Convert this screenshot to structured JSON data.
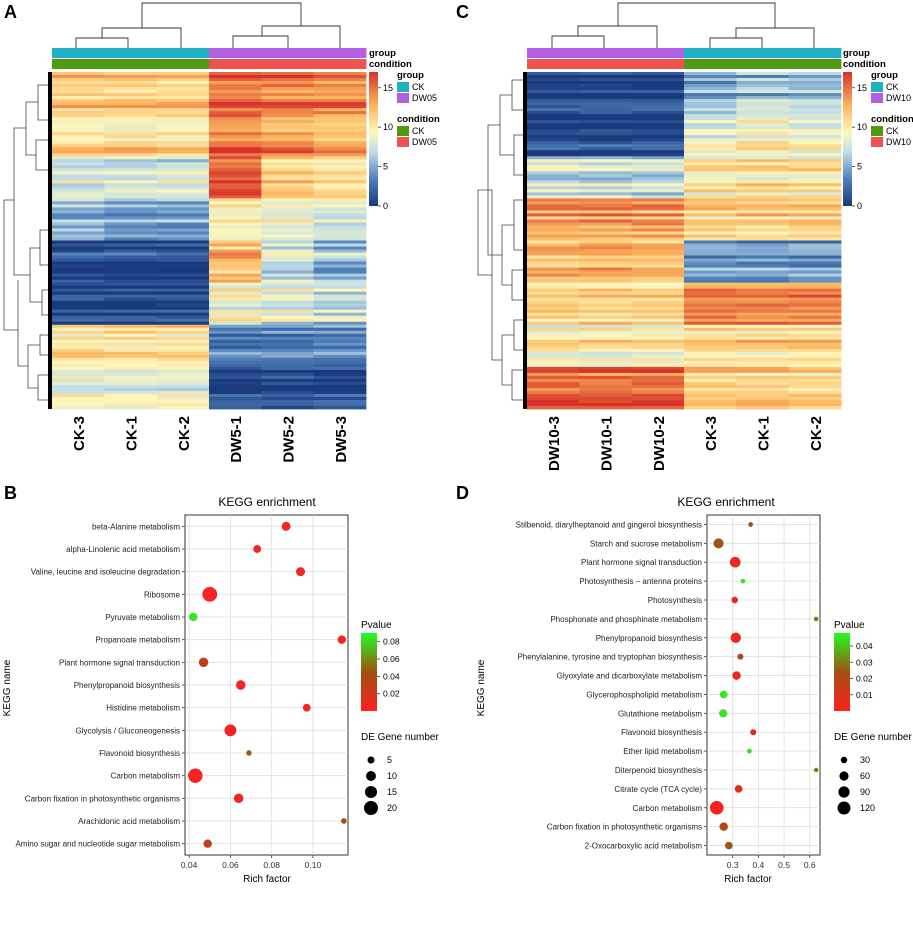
{
  "panels": {
    "A": {
      "letter": "A"
    },
    "B": {
      "letter": "B"
    },
    "C": {
      "letter": "C"
    },
    "D": {
      "letter": "D"
    }
  },
  "legend_labels": {
    "group": "group",
    "condition": "condition",
    "pvalue": "Pvalue",
    "de_gene_number": "DE Gene number"
  },
  "chart_data": [
    {
      "panel": "A",
      "type": "heatmap",
      "columns": [
        "CK-3",
        "CK-1",
        "CK-2",
        "DW5-1",
        "DW5-2",
        "DW5-3"
      ],
      "annotation_rows": [
        "group",
        "condition"
      ],
      "group_legend": [
        {
          "label": "CK",
          "color": "#20b2c4"
        },
        {
          "label": "DW05",
          "color": "#b45ee6"
        }
      ],
      "condition_legend": [
        {
          "label": "CK",
          "color": "#4e9a12"
        },
        {
          "label": "DW05",
          "color": "#f0524f"
        }
      ],
      "column_groups": [
        "CK",
        "CK",
        "CK",
        "DW05",
        "DW05",
        "DW05"
      ],
      "colorbar": {
        "min": 0,
        "max": 17,
        "ticks": [
          0,
          5,
          10,
          15
        ]
      },
      "row_blocks": [
        {
          "values": [
            12,
            12,
            12,
            15.5,
            15,
            15
          ]
        },
        {
          "values": [
            11,
            11,
            11,
            15,
            14,
            13
          ]
        },
        {
          "values": [
            8,
            8,
            8,
            16,
            12,
            11
          ]
        },
        {
          "values": [
            6,
            5,
            5,
            10,
            9,
            8
          ]
        },
        {
          "values": [
            1,
            1,
            1,
            13,
            8,
            6
          ]
        },
        {
          "values": [
            0.3,
            0.3,
            0.3,
            9,
            8,
            7
          ]
        },
        {
          "values": [
            11,
            11,
            11,
            4,
            4,
            4
          ]
        },
        {
          "values": [
            8,
            8,
            8,
            0.5,
            0.5,
            0.5
          ]
        }
      ]
    },
    {
      "panel": "C",
      "type": "heatmap",
      "columns": [
        "DW10-3",
        "DW10-1",
        "DW10-2",
        "CK-3",
        "CK-1",
        "CK-2"
      ],
      "annotation_rows": [
        "group",
        "condition"
      ],
      "group_legend": [
        {
          "label": "CK",
          "color": "#20b2c4"
        },
        {
          "label": "DW10",
          "color": "#b45ee6"
        }
      ],
      "condition_legend": [
        {
          "label": "CK",
          "color": "#4e9a12"
        },
        {
          "label": "DW10",
          "color": "#f0524f"
        }
      ],
      "column_groups": [
        "DW10",
        "DW10",
        "DW10",
        "CK",
        "CK",
        "CK"
      ],
      "colorbar": {
        "min": 0,
        "max": 17,
        "ticks": [
          0,
          5,
          10,
          15
        ]
      },
      "row_blocks": [
        {
          "values": [
            0.5,
            0.5,
            0.5,
            5,
            6,
            6
          ]
        },
        {
          "values": [
            1,
            1,
            1,
            9,
            10,
            9
          ]
        },
        {
          "values": [
            7,
            7,
            7,
            10,
            10,
            10
          ]
        },
        {
          "values": [
            13,
            13,
            13,
            11,
            11,
            11
          ]
        },
        {
          "values": [
            12,
            12,
            12,
            4,
            4,
            4
          ]
        },
        {
          "values": [
            11,
            11,
            11,
            14,
            14,
            14
          ]
        },
        {
          "values": [
            10,
            10,
            10,
            11,
            11,
            11
          ]
        },
        {
          "values": [
            15,
            15,
            15,
            11,
            11,
            11
          ]
        }
      ]
    },
    {
      "panel": "B",
      "type": "scatter",
      "title": "KEGG enrichment",
      "xlabel": "Rich factor",
      "ylabel": "KEGG name",
      "xlim": [
        0.038,
        0.117
      ],
      "xticks": [
        0.04,
        0.06,
        0.08,
        0.1
      ],
      "xtick_labels": [
        "0.04",
        "0.06",
        "0.08",
        "0.10"
      ],
      "pvalue_range": [
        0,
        0.09
      ],
      "pvalue_ticks": [
        0.02,
        0.04,
        0.06,
        0.08
      ],
      "pvalue_tick_labels": [
        "0.02",
        "0.04",
        "0.06",
        "0.08"
      ],
      "size_legend": [
        5,
        10,
        15,
        20
      ],
      "size_max": 23,
      "terms": [
        {
          "name": "beta-Alanine metabolism",
          "rich_factor": 0.087,
          "pvalue": 0.004,
          "gene_number": 8
        },
        {
          "name": "alpha-Linolenic acid metabolism",
          "rich_factor": 0.073,
          "pvalue": 0.005,
          "gene_number": 6
        },
        {
          "name": "Valine, leucine and isoleucine degradation",
          "rich_factor": 0.094,
          "pvalue": 0.004,
          "gene_number": 8
        },
        {
          "name": "Ribosome",
          "rich_factor": 0.05,
          "pvalue": 0.001,
          "gene_number": 22
        },
        {
          "name": "Pyruvate metabolism",
          "rich_factor": 0.042,
          "pvalue": 0.085,
          "gene_number": 7
        },
        {
          "name": "Propanoate metabolism",
          "rich_factor": 0.114,
          "pvalue": 0.004,
          "gene_number": 7
        },
        {
          "name": "Plant hormone signal transduction",
          "rich_factor": 0.047,
          "pvalue": 0.03,
          "gene_number": 9
        },
        {
          "name": "Phenylpropanoid biosynthesis",
          "rich_factor": 0.065,
          "pvalue": 0.005,
          "gene_number": 9
        },
        {
          "name": "Histidine metabolism",
          "rich_factor": 0.097,
          "pvalue": 0.005,
          "gene_number": 6
        },
        {
          "name": "Glycolysis / Gluconeogenesis",
          "rich_factor": 0.06,
          "pvalue": 0.003,
          "gene_number": 14
        },
        {
          "name": "Flavonoid biosynthesis",
          "rich_factor": 0.069,
          "pvalue": 0.05,
          "gene_number": 3
        },
        {
          "name": "Carbon metabolism",
          "rich_factor": 0.043,
          "pvalue": 0.001,
          "gene_number": 21
        },
        {
          "name": "Carbon fixation in photosynthetic organisms",
          "rich_factor": 0.064,
          "pvalue": 0.005,
          "gene_number": 9
        },
        {
          "name": "Arachidonic acid metabolism",
          "rich_factor": 0.115,
          "pvalue": 0.04,
          "gene_number": 3
        },
        {
          "name": "Amino sugar and nucleotide sugar metabolism",
          "rich_factor": 0.049,
          "pvalue": 0.03,
          "gene_number": 7
        }
      ]
    },
    {
      "panel": "D",
      "type": "scatter",
      "title": "KEGG enrichment",
      "xlabel": "Rich factor",
      "ylabel": "KEGG name",
      "xlim": [
        0.2,
        0.64
      ],
      "xticks": [
        0.3,
        0.4,
        0.5,
        0.6
      ],
      "xtick_labels": [
        "0.3",
        "0.4",
        "0.5",
        "0.6"
      ],
      "pvalue_range": [
        0,
        0.048
      ],
      "pvalue_ticks": [
        0.01,
        0.02,
        0.03,
        0.04
      ],
      "pvalue_tick_labels": [
        "0.01",
        "0.02",
        "0.03",
        "0.04"
      ],
      "size_legend": [
        30,
        60,
        90,
        120
      ],
      "size_max": 140,
      "terms": [
        {
          "name": "Stilbenoid, diarylheptanoid and gingerol biosynthesis",
          "rich_factor": 0.37,
          "pvalue": 0.02,
          "gene_number": 15
        },
        {
          "name": "Starch and sucrose metabolism",
          "rich_factor": 0.245,
          "pvalue": 0.025,
          "gene_number": 70
        },
        {
          "name": "Plant hormone signal transduction",
          "rich_factor": 0.31,
          "pvalue": 0.002,
          "gene_number": 80
        },
        {
          "name": "Photosynthesis – antenna proteins",
          "rich_factor": 0.34,
          "pvalue": 0.045,
          "gene_number": 12
        },
        {
          "name": "Photosynthesis",
          "rich_factor": 0.308,
          "pvalue": 0.005,
          "gene_number": 30
        },
        {
          "name": "Phosphonate and phosphinate metabolism",
          "rich_factor": 0.625,
          "pvalue": 0.03,
          "gene_number": 5
        },
        {
          "name": "Phenylpropanoid biosynthesis",
          "rich_factor": 0.312,
          "pvalue": 0.002,
          "gene_number": 75
        },
        {
          "name": "Phenylalanine, tyrosine and tryptophan biosynthesis",
          "rich_factor": 0.33,
          "pvalue": 0.02,
          "gene_number": 25
        },
        {
          "name": "Glyoxylate and dicarboxylate metabolism",
          "rich_factor": 0.315,
          "pvalue": 0.003,
          "gene_number": 50
        },
        {
          "name": "Glycerophospholipid metabolism",
          "rich_factor": 0.265,
          "pvalue": 0.045,
          "gene_number": 40
        },
        {
          "name": "Glutathione metabolism",
          "rich_factor": 0.263,
          "pvalue": 0.045,
          "gene_number": 45
        },
        {
          "name": "Flavonoid biosynthesis",
          "rich_factor": 0.38,
          "pvalue": 0.004,
          "gene_number": 25
        },
        {
          "name": "Ether lipid metabolism",
          "rich_factor": 0.365,
          "pvalue": 0.045,
          "gene_number": 15
        },
        {
          "name": "Diterpenoid biosynthesis",
          "rich_factor": 0.625,
          "pvalue": 0.03,
          "gene_number": 5
        },
        {
          "name": "Citrate cycle (TCA cycle)",
          "rich_factor": 0.323,
          "pvalue": 0.004,
          "gene_number": 40
        },
        {
          "name": "Carbon metabolism",
          "rich_factor": 0.238,
          "pvalue": 0.001,
          "gene_number": 130
        },
        {
          "name": "Carbon fixation in photosynthetic organisms",
          "rich_factor": 0.265,
          "pvalue": 0.02,
          "gene_number": 50
        },
        {
          "name": "2-Oxocarboxylic acid metabolism",
          "rich_factor": 0.285,
          "pvalue": 0.025,
          "gene_number": 40
        }
      ]
    }
  ]
}
